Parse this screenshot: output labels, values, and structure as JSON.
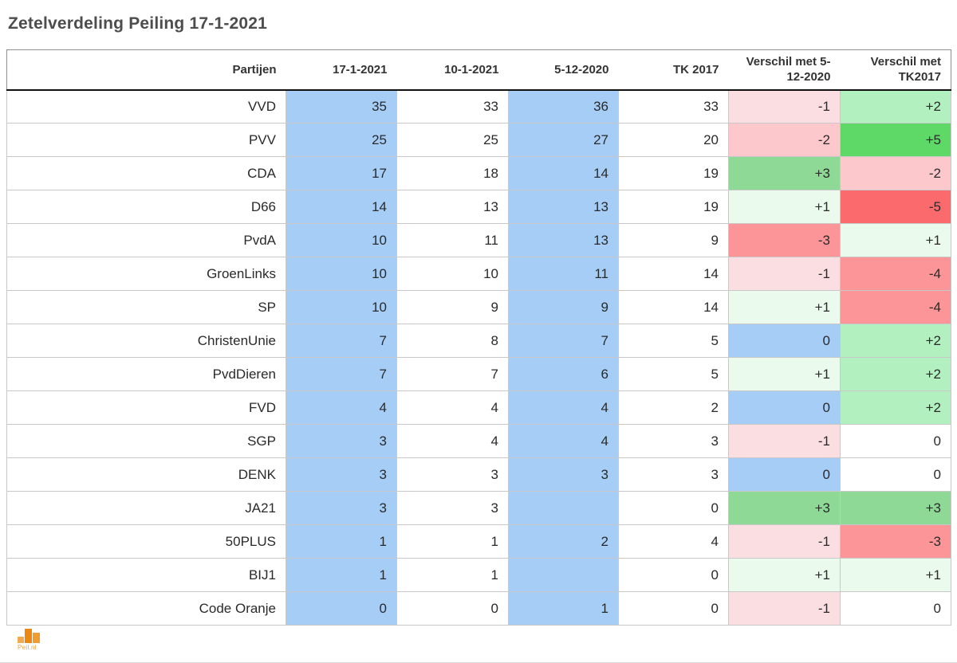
{
  "title": "Zetelverdeling Peiling 17-1-2021",
  "logo": {
    "label": "Peil.nl"
  },
  "colors": {
    "white": "#ffffff",
    "blue": "#a6cdf5",
    "green1": "#eafaed",
    "green2": "#b3f0bf",
    "green3": "#8fd997",
    "green5": "#5ed967",
    "pink1": "#fbdee1",
    "pink2": "#fcc8cb",
    "red3": "#fc9597",
    "red5": "#fb6a6c"
  },
  "table": {
    "columns": [
      "Partijen",
      "17-1-2021",
      "10-1-2021",
      "5-12-2020",
      "TK 2017",
      "Verschil met 5-12-2020",
      "Verschil met TK2017"
    ],
    "rows": [
      {
        "cells": [
          {
            "t": "VVD",
            "bg": "white"
          },
          {
            "t": "35",
            "bg": "blue"
          },
          {
            "t": "33",
            "bg": "white"
          },
          {
            "t": "36",
            "bg": "blue"
          },
          {
            "t": "33",
            "bg": "white"
          },
          {
            "t": "-1",
            "bg": "pink1"
          },
          {
            "t": "+2",
            "bg": "green2"
          }
        ]
      },
      {
        "cells": [
          {
            "t": "PVV",
            "bg": "white"
          },
          {
            "t": "25",
            "bg": "blue"
          },
          {
            "t": "25",
            "bg": "white"
          },
          {
            "t": "27",
            "bg": "blue"
          },
          {
            "t": "20",
            "bg": "white"
          },
          {
            "t": "-2",
            "bg": "pink2"
          },
          {
            "t": "+5",
            "bg": "green5"
          }
        ]
      },
      {
        "cells": [
          {
            "t": "CDA",
            "bg": "white"
          },
          {
            "t": "17",
            "bg": "blue"
          },
          {
            "t": "18",
            "bg": "white"
          },
          {
            "t": "14",
            "bg": "blue"
          },
          {
            "t": "19",
            "bg": "white"
          },
          {
            "t": "+3",
            "bg": "green3"
          },
          {
            "t": "-2",
            "bg": "pink2"
          }
        ]
      },
      {
        "cells": [
          {
            "t": "D66",
            "bg": "white"
          },
          {
            "t": "14",
            "bg": "blue"
          },
          {
            "t": "13",
            "bg": "white"
          },
          {
            "t": "13",
            "bg": "blue"
          },
          {
            "t": "19",
            "bg": "white"
          },
          {
            "t": "+1",
            "bg": "green1"
          },
          {
            "t": "-5",
            "bg": "red5"
          }
        ]
      },
      {
        "cells": [
          {
            "t": "PvdA",
            "bg": "white"
          },
          {
            "t": "10",
            "bg": "blue"
          },
          {
            "t": "11",
            "bg": "white"
          },
          {
            "t": "13",
            "bg": "blue"
          },
          {
            "t": "9",
            "bg": "white"
          },
          {
            "t": "-3",
            "bg": "red3"
          },
          {
            "t": "+1",
            "bg": "green1"
          }
        ]
      },
      {
        "cells": [
          {
            "t": "GroenLinks",
            "bg": "white"
          },
          {
            "t": "10",
            "bg": "blue"
          },
          {
            "t": "10",
            "bg": "white"
          },
          {
            "t": "11",
            "bg": "blue"
          },
          {
            "t": "14",
            "bg": "white"
          },
          {
            "t": "-1",
            "bg": "pink1"
          },
          {
            "t": "-4",
            "bg": "red3"
          }
        ]
      },
      {
        "cells": [
          {
            "t": "SP",
            "bg": "white"
          },
          {
            "t": "10",
            "bg": "blue"
          },
          {
            "t": "9",
            "bg": "white"
          },
          {
            "t": "9",
            "bg": "blue"
          },
          {
            "t": "14",
            "bg": "white"
          },
          {
            "t": "+1",
            "bg": "green1"
          },
          {
            "t": "-4",
            "bg": "red3"
          }
        ]
      },
      {
        "cells": [
          {
            "t": "ChristenUnie",
            "bg": "white"
          },
          {
            "t": "7",
            "bg": "blue"
          },
          {
            "t": "8",
            "bg": "white"
          },
          {
            "t": "7",
            "bg": "blue"
          },
          {
            "t": "5",
            "bg": "white"
          },
          {
            "t": "0",
            "bg": "blue"
          },
          {
            "t": "+2",
            "bg": "green2"
          }
        ]
      },
      {
        "cells": [
          {
            "t": "PvdDieren",
            "bg": "white"
          },
          {
            "t": "7",
            "bg": "blue"
          },
          {
            "t": "7",
            "bg": "white"
          },
          {
            "t": "6",
            "bg": "blue"
          },
          {
            "t": "5",
            "bg": "white"
          },
          {
            "t": "+1",
            "bg": "green1"
          },
          {
            "t": "+2",
            "bg": "green2"
          }
        ]
      },
      {
        "cells": [
          {
            "t": "FVD",
            "bg": "white"
          },
          {
            "t": "4",
            "bg": "blue"
          },
          {
            "t": "4",
            "bg": "white"
          },
          {
            "t": "4",
            "bg": "blue"
          },
          {
            "t": "2",
            "bg": "white"
          },
          {
            "t": "0",
            "bg": "blue"
          },
          {
            "t": "+2",
            "bg": "green2"
          }
        ]
      },
      {
        "cells": [
          {
            "t": "SGP",
            "bg": "white"
          },
          {
            "t": "3",
            "bg": "blue"
          },
          {
            "t": "4",
            "bg": "white"
          },
          {
            "t": "4",
            "bg": "blue"
          },
          {
            "t": "3",
            "bg": "white"
          },
          {
            "t": "-1",
            "bg": "pink1"
          },
          {
            "t": "0",
            "bg": "white"
          }
        ]
      },
      {
        "cells": [
          {
            "t": "DENK",
            "bg": "white"
          },
          {
            "t": "3",
            "bg": "blue"
          },
          {
            "t": "3",
            "bg": "white"
          },
          {
            "t": "3",
            "bg": "blue"
          },
          {
            "t": "3",
            "bg": "white"
          },
          {
            "t": "0",
            "bg": "blue"
          },
          {
            "t": "0",
            "bg": "white"
          }
        ]
      },
      {
        "cells": [
          {
            "t": "JA21",
            "bg": "white"
          },
          {
            "t": "3",
            "bg": "blue"
          },
          {
            "t": "3",
            "bg": "white"
          },
          {
            "t": "",
            "bg": "blue"
          },
          {
            "t": "0",
            "bg": "white"
          },
          {
            "t": "+3",
            "bg": "green3"
          },
          {
            "t": "+3",
            "bg": "green3"
          }
        ]
      },
      {
        "cells": [
          {
            "t": "50PLUS",
            "bg": "white"
          },
          {
            "t": "1",
            "bg": "blue"
          },
          {
            "t": "1",
            "bg": "white"
          },
          {
            "t": "2",
            "bg": "blue"
          },
          {
            "t": "4",
            "bg": "white"
          },
          {
            "t": "-1",
            "bg": "pink1"
          },
          {
            "t": "-3",
            "bg": "red3"
          }
        ]
      },
      {
        "cells": [
          {
            "t": "BIJ1",
            "bg": "white"
          },
          {
            "t": "1",
            "bg": "blue"
          },
          {
            "t": "1",
            "bg": "white"
          },
          {
            "t": "",
            "bg": "blue"
          },
          {
            "t": "0",
            "bg": "white"
          },
          {
            "t": "+1",
            "bg": "green1"
          },
          {
            "t": "+1",
            "bg": "green1"
          }
        ]
      },
      {
        "cells": [
          {
            "t": "Code Oranje",
            "bg": "white"
          },
          {
            "t": "0",
            "bg": "blue"
          },
          {
            "t": "0",
            "bg": "white"
          },
          {
            "t": "1",
            "bg": "blue"
          },
          {
            "t": "0",
            "bg": "white"
          },
          {
            "t": "-1",
            "bg": "pink1"
          },
          {
            "t": "0",
            "bg": "white"
          }
        ]
      }
    ]
  },
  "chart_data": {
    "type": "table",
    "title": "Zetelverdeling Peiling 17-1-2021",
    "columns": [
      "Partijen",
      "17-1-2021",
      "10-1-2021",
      "5-12-2020",
      "TK 2017",
      "Verschil met 5-12-2020",
      "Verschil met TK2017"
    ],
    "rows": [
      [
        "VVD",
        35,
        33,
        36,
        33,
        -1,
        2
      ],
      [
        "PVV",
        25,
        25,
        27,
        20,
        -2,
        5
      ],
      [
        "CDA",
        17,
        18,
        14,
        19,
        3,
        -2
      ],
      [
        "D66",
        14,
        13,
        13,
        19,
        1,
        -5
      ],
      [
        "PvdA",
        10,
        11,
        13,
        9,
        -3,
        1
      ],
      [
        "GroenLinks",
        10,
        10,
        11,
        14,
        -1,
        -4
      ],
      [
        "SP",
        10,
        9,
        9,
        14,
        1,
        -4
      ],
      [
        "ChristenUnie",
        7,
        8,
        7,
        5,
        0,
        2
      ],
      [
        "PvdDieren",
        7,
        7,
        6,
        5,
        1,
        2
      ],
      [
        "FVD",
        4,
        4,
        4,
        2,
        0,
        2
      ],
      [
        "SGP",
        3,
        4,
        4,
        3,
        -1,
        0
      ],
      [
        "DENK",
        3,
        3,
        3,
        3,
        0,
        0
      ],
      [
        "JA21",
        3,
        3,
        null,
        0,
        3,
        3
      ],
      [
        "50PLUS",
        1,
        1,
        2,
        4,
        -1,
        -3
      ],
      [
        "BIJ1",
        1,
        1,
        null,
        0,
        1,
        1
      ],
      [
        "Code Oranje",
        0,
        0,
        1,
        0,
        -1,
        0
      ]
    ],
    "legend_position": "none",
    "highlight_columns_blue": [
      "17-1-2021",
      "5-12-2020"
    ],
    "diff_color_scale": {
      "+5": "#5ed967",
      "+3": "#8fd997",
      "+2": "#b3f0bf",
      "+1": "#eafaed",
      "0_first_diff_col": "#a6cdf5",
      "0_second_diff_col": "#ffffff",
      "-1": "#fbdee1",
      "-2": "#fcc8cb",
      "-3": "#fc9597",
      "-4": "#fc9597",
      "-5": "#fb6a6c"
    }
  }
}
